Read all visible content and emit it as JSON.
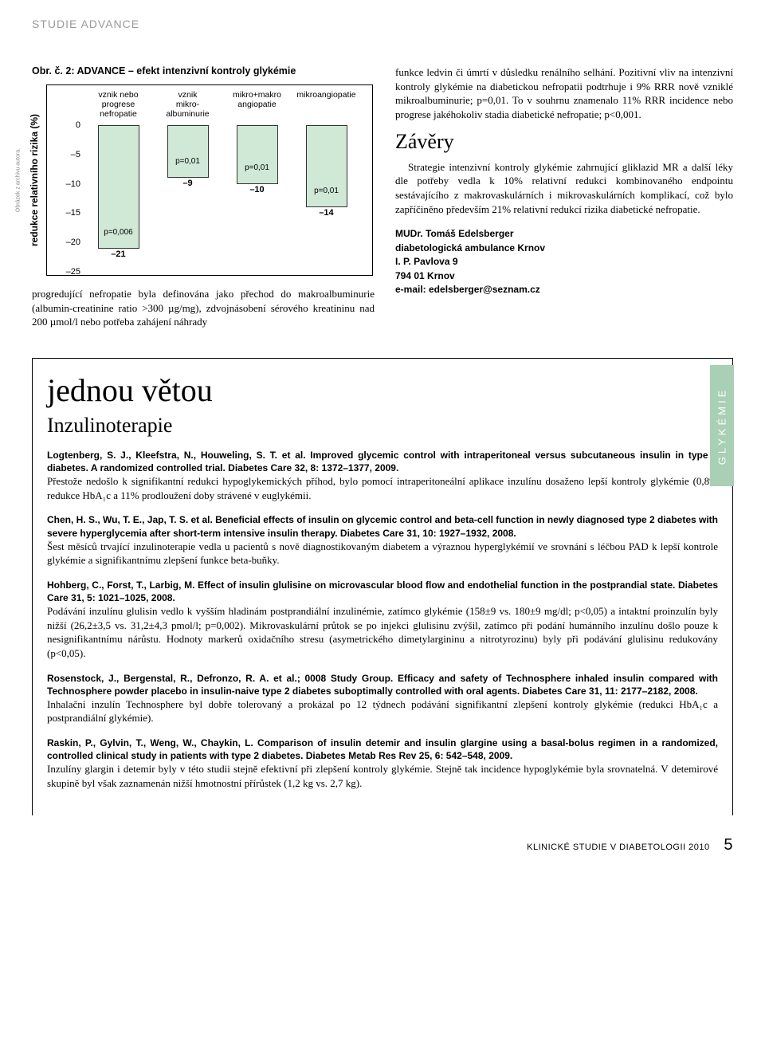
{
  "header": {
    "section_label": "STUDIE ADVANCE"
  },
  "chart": {
    "title": "Obr. č. 2: ADVANCE – efekt intenzivní kontroly glykémie",
    "type": "bar",
    "ylabel": "redukce relativního rizika (%)",
    "credit": "Obrázek z archivu autora.",
    "ylim_min": -25,
    "ylim_max": 0,
    "ytick_step": 5,
    "yticks": [
      "0",
      "–5",
      "–10",
      "–15",
      "–20",
      "–25"
    ],
    "bar_color": "#cfe9d6",
    "bar_border": "#333333",
    "box_border": "#000000",
    "background": "#ffffff",
    "column_labels": [
      "vznik nebo\nprogrese\nnefropatie",
      "vznik\nmikro-\nalbuminurie",
      "mikro+makro\nangiopatie",
      "mikroangiopatie"
    ],
    "bars": [
      {
        "value": -21,
        "value_label": "–21",
        "p_label": "p=0,006"
      },
      {
        "value": -9,
        "value_label": "–9",
        "p_label": "p=0,01"
      },
      {
        "value": -10,
        "value_label": "–10",
        "p_label": "p=0,01"
      },
      {
        "value": -14,
        "value_label": "–14",
        "p_label": "p=0,01"
      }
    ]
  },
  "left_body": "progredující nefropatie byla definována jako přechod do makroalbuminurie (albumin-creatinine ratio >300 µg/mg), zdvojnásobení sérového kreatininu nad 200 µmol/l nebo potřeba zahájení náhrady",
  "right": {
    "p1": "funkce ledvin či úmrtí v důsledku renálního selhání. Pozitivní vliv na intenzivní kontroly glykémie na diabetickou nefropatii podtrhuje i 9% RRR nově vzniklé mikroalbuminurie; p=0,01. To v souhrnu znamenalo 11% RRR incidence nebo progrese jakéhokoliv stadia diabetické nefropatie; p<0,001.",
    "zavery_heading": "Závěry",
    "p2": "Strategie intenzivní kontroly glykémie zahrnující gliklazid MR a další léky dle potřeby vedla k 10% relativní redukci kombinovaného endpointu sestávajícího z makrovaskulárních i mikrovaskulárních komplikací, což bylo zapříčiněno především 21% relativní redukcí rizika diabetické nefropatie.",
    "author": {
      "l1": "MUDr. Tomáš Edelsberger",
      "l2": "diabetologická ambulance Krnov",
      "l3": "I. P. Pavlova 9",
      "l4": "794 01 Krnov",
      "l5": "e-mail: edelsberger@seznam.cz"
    }
  },
  "lower": {
    "heading1": "jednou větou",
    "heading2": "Inzulinoterapie",
    "side_tab": "GLYKÉMIE",
    "refs": [
      {
        "title": "Logtenberg, S. J., Kleefstra, N., Houweling, S. T. et al. Improved glycemic control with intraperitoneal versus subcutaneous insulin in type 1 diabetes. A randomized controlled trial. Diabetes Care 32, 8: 1372–1377, 2009.",
        "body": "Přestože nedošlo k signifikantní redukci hypoglykemických příhod, bylo pomocí intraperitoneální aplikace inzulínu dosaženo lepší kontroly glykémie (0,8% redukce HbA₁c a 11% prodloužení doby strávené v euglykémii."
      },
      {
        "title": "Chen, H. S., Wu, T. E., Jap, T. S. et al. Beneficial effects of insulin on glycemic control and beta-cell function in newly diagnosed type 2 diabetes with severe hyperglycemia after short-term intensive insulin therapy. Diabetes Care 31, 10: 1927–1932, 2008.",
        "body": "Šest měsíců trvající inzulinoterapie vedla u pacientů s nově diagnostikovaným diabetem a výraznou hyperglykémií ve srovnání s léčbou PAD k lepší kontrole glykémie a signifikantnímu zlepšení funkce beta-buňky."
      },
      {
        "title": "Hohberg, C., Forst, T., Larbig, M. Effect of insulin glulisine on microvascular blood flow and endothelial function in the postprandial state. Diabetes Care 31, 5: 1021–1025, 2008.",
        "body": "Podávání inzulínu glulisin vedlo k vyšším hladinám postprandiální inzulinémie, zatímco glykémie (158±9 vs. 180±9 mg/dl; p<0,05) a intaktní proinzulín byly nižší (26,2±3,5 vs. 31,2±4,3 pmol/l; p=0,002). Mikrovaskulární průtok se po injekci glulisinu zvýšil, zatímco při podání humánního inzulínu došlo pouze k nesignifikantnímu nárůstu. Hodnoty markerů oxidačního stresu (asymetrického dimetylargininu a nitrotyrozinu) byly při podávání glulisinu redukovány (p<0,05)."
      },
      {
        "title": "Rosenstock, J., Bergenstal, R., Defronzo, R. A. et al.; 0008 Study Group. Efficacy and safety of Technosphere inhaled insulin compared with Technosphere powder placebo in insulin-naive type 2 diabetes suboptimally controlled with oral agents. Diabetes Care 31, 11: 2177–2182, 2008.",
        "body": "Inhalační inzulín Technosphere byl dobře tolerovaný a prokázal po 12 týdnech podávání signifikantní zlepšení kontroly glykémie (redukci HbA₁c a postprandiální glykémie)."
      },
      {
        "title": "Raskin, P., Gylvin, T., Weng, W., Chaykin, L. Comparison of insulin detemir and insulin glargine using a basal-bolus regimen in a randomized, controlled clinical study in patients with type 2 diabetes. Diabetes Metab Res Rev 25, 6: 542–548, 2009.",
        "body": "Inzulíny glargin i detemir byly v této studii stejně efektivní při zlepšení kontroly glykémie. Stejně tak incidence hypoglykémie byla srovnatelná. V detemirové skupině byl však zaznamenán nižší hmotnostní přírůstek (1,2 kg vs. 2,7 kg)."
      }
    ]
  },
  "footer": {
    "journal": "KLINICKÉ STUDIE V DIABETOLOGII 2010",
    "page": "5"
  }
}
